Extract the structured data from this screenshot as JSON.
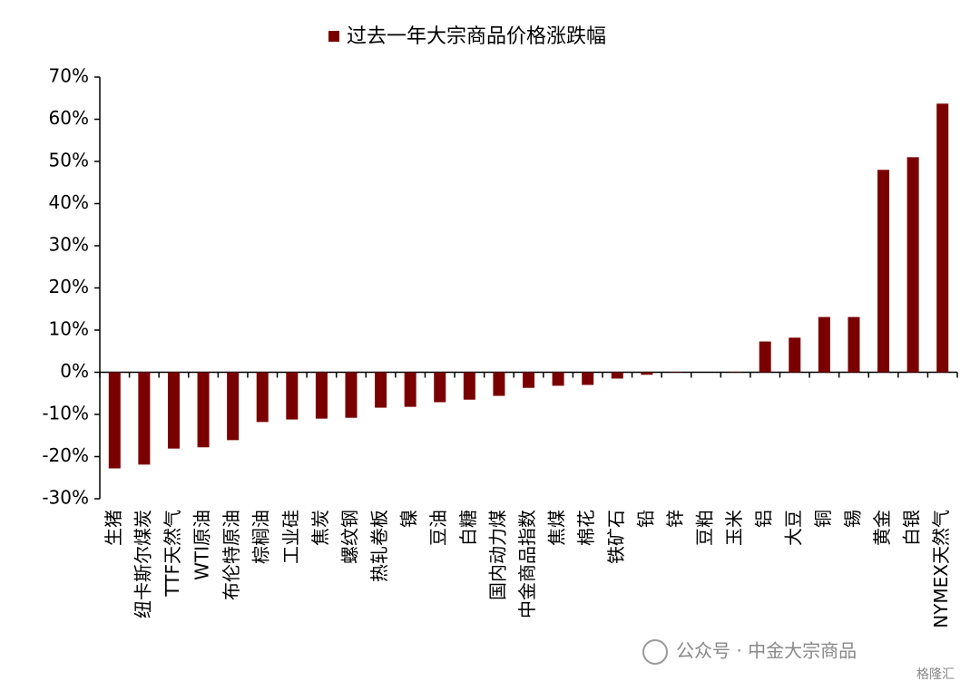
{
  "chart_data": {
    "type": "bar",
    "categories": [
      "生猪",
      "纽卡斯尔煤炭",
      "TTF天然气",
      "WTI原油",
      "布伦特原油",
      "棕榈油",
      "工业硅",
      "焦炭",
      "螺纹钢",
      "热轧卷板",
      "镍",
      "豆油",
      "白糖",
      "国内动力煤",
      "中金商品指数",
      "焦煤",
      "棉花",
      "铁矿石",
      "铅",
      "锌",
      "豆粕",
      "玉米",
      "铝",
      "大豆",
      "铜",
      "锡",
      "黄金",
      "白银",
      "NYMEX天然气"
    ],
    "series": [
      {
        "name": "过去一年大宗商品价格涨跌幅",
        "color": "#7a0000",
        "values": [
          -22.8,
          -21.9,
          -18.1,
          -17.8,
          -16.1,
          -11.8,
          -11.2,
          -11.0,
          -10.8,
          -8.4,
          -8.2,
          -7.1,
          -6.5,
          -5.6,
          -3.7,
          -3.2,
          -3.0,
          -1.5,
          -0.6,
          -0.1,
          0.0,
          0.1,
          7.3,
          8.2,
          13.1,
          13.1,
          48.0,
          51.0,
          63.7
        ]
      }
    ],
    "ylim": [
      -30,
      70
    ],
    "yticks": [
      {
        "value": -30,
        "label": "-30%"
      },
      {
        "value": -20,
        "label": "-20%"
      },
      {
        "value": -10,
        "label": "-10%"
      },
      {
        "value": 0,
        "label": "0%"
      },
      {
        "value": 10,
        "label": "10%"
      },
      {
        "value": 20,
        "label": "20%"
      },
      {
        "value": 30,
        "label": "30%"
      },
      {
        "value": 40,
        "label": "40%"
      },
      {
        "value": 50,
        "label": "50%"
      },
      {
        "value": 60,
        "label": "60%"
      },
      {
        "value": 70,
        "label": "70%"
      }
    ],
    "legend": "top",
    "watermark": "公众号 · 中金大宗商品",
    "logo": "格隆汇"
  }
}
